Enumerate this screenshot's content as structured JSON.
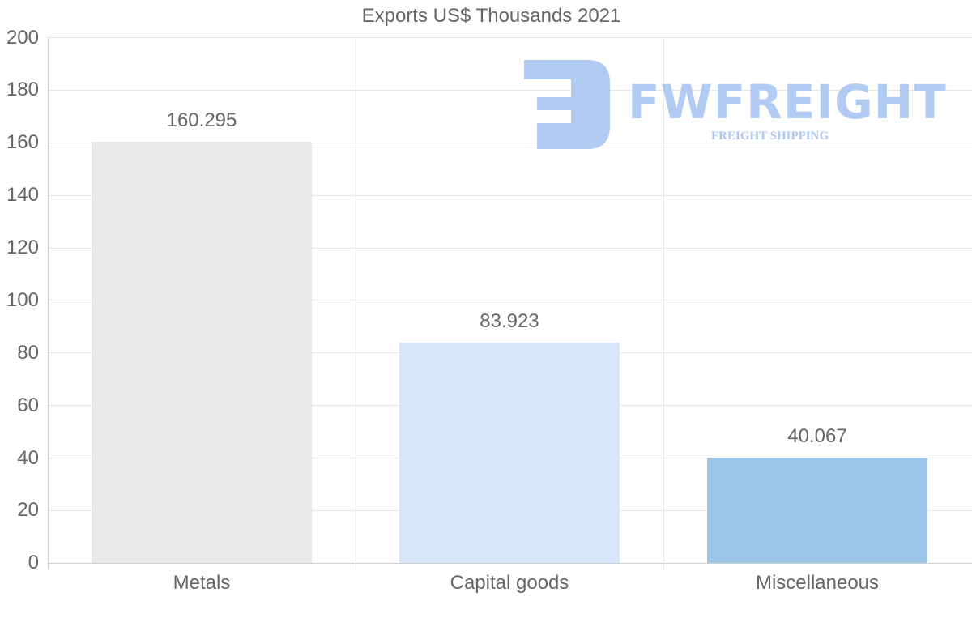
{
  "chart_data": {
    "type": "bar",
    "title": "Exports US$ Thousands 2021",
    "categories": [
      "Metals",
      "Capital goods",
      "Miscellaneous"
    ],
    "values": [
      160.295,
      83.923,
      40.067
    ],
    "value_labels": [
      "160.295",
      "83.923",
      "40.067"
    ],
    "bar_colors": [
      "#e8e8e8",
      "#d6e6f8",
      "#9dc5e7"
    ],
    "xlabel": "",
    "ylabel": "",
    "ylim": [
      0,
      200
    ],
    "yticks": [
      0,
      20,
      40,
      60,
      80,
      100,
      120,
      140,
      160,
      180,
      200
    ],
    "grid": true,
    "legend": null
  },
  "watermark": {
    "brand": "FWFREIGHT",
    "tagline": "FREIGHT SHIPPING",
    "color": "#aac6f2"
  },
  "labels": {
    "yticks": [
      "200",
      "180",
      "160",
      "140",
      "120",
      "100",
      "80",
      "60",
      "40",
      "20",
      "0"
    ]
  }
}
